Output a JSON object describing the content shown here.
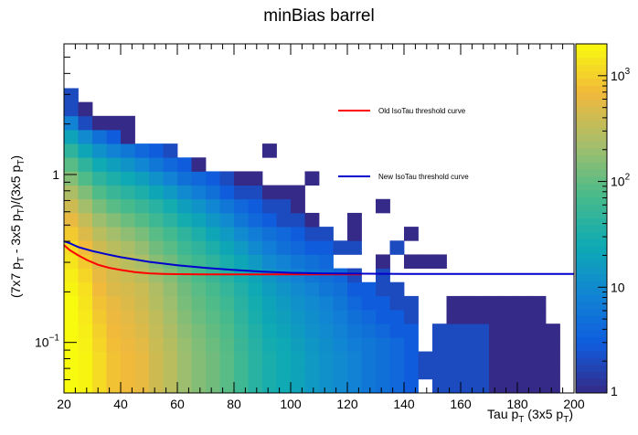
{
  "chart_data": {
    "type": "heatmap",
    "title": "minBias barrel",
    "xlabel": {
      "base": "Tau p",
      "sub": "T",
      "rest": " (3x5 p",
      "sub2": "T",
      "end": ")"
    },
    "ylabel": {
      "p1": "(7x7 p",
      "s1": "T",
      "p2": " - 3x5 p",
      "s2": "T",
      "p3": ")/(3x5 p",
      "s3": "T",
      "p4": ")"
    },
    "xlim": [
      20,
      200
    ],
    "ylim": [
      0.05,
      6
    ],
    "yscale": "log",
    "zscale": "log",
    "zlim": [
      1,
      2000
    ],
    "x_ticks": [
      20,
      40,
      60,
      80,
      100,
      120,
      140,
      160,
      180,
      200
    ],
    "x_tick_labels": [
      "20",
      "40",
      "60",
      "80",
      "100",
      "120",
      "140",
      "160",
      "180",
      "200"
    ],
    "y_tick_labels": [
      {
        "value": 0.1,
        "base": "10",
        "exp": "−1"
      },
      {
        "value": 1,
        "base": "1",
        "exp": ""
      }
    ],
    "z_tick_labels": [
      {
        "value": 1,
        "base": "1",
        "exp": ""
      },
      {
        "value": 10,
        "base": "10",
        "exp": ""
      },
      {
        "value": 100,
        "base": "10",
        "exp": "2"
      },
      {
        "value": 1000,
        "base": "10",
        "exp": "3"
      }
    ],
    "grid": false,
    "legend": {
      "position": "top-right",
      "entries": [
        {
          "label": "Old IsoTau threshold curve",
          "color": "#ff0000"
        },
        {
          "label": "New IsoTau threshold curve",
          "color": "#0000cc"
        }
      ]
    },
    "lines": [
      {
        "label": "Old IsoTau threshold curve",
        "color": "#ff0000",
        "x": [
          20,
          22,
          25,
          28,
          32,
          36,
          40,
          45,
          50,
          55,
          60,
          70,
          80,
          90,
          100,
          110,
          120,
          125
        ],
        "y": [
          0.38,
          0.355,
          0.33,
          0.31,
          0.29,
          0.278,
          0.27,
          0.262,
          0.258,
          0.256,
          0.255,
          0.254,
          0.254,
          0.254,
          0.254,
          0.254,
          0.254,
          0.254
        ]
      },
      {
        "label": "New IsoTau threshold curve",
        "color": "#0000cc",
        "x": [
          20,
          22,
          25,
          30,
          35,
          40,
          50,
          60,
          70,
          80,
          90,
          100,
          110,
          120,
          140,
          160,
          180,
          200
        ],
        "y": [
          0.4,
          0.39,
          0.37,
          0.35,
          0.335,
          0.322,
          0.302,
          0.288,
          0.278,
          0.27,
          0.264,
          0.26,
          0.258,
          0.257,
          0.256,
          0.256,
          0.256,
          0.256
        ]
      }
    ],
    "x_bins": [
      20,
      25,
      30,
      35,
      40,
      45,
      50,
      55,
      60,
      65,
      70,
      75,
      80,
      85,
      90,
      95,
      100,
      105,
      110,
      115,
      120,
      125,
      130,
      135,
      140,
      145,
      150,
      155,
      160,
      165,
      170,
      175,
      180,
      185,
      190,
      195,
      200
    ],
    "y_bins": [
      0.05,
      0.0605,
      0.0731,
      0.0884,
      0.1069,
      0.1293,
      0.1563,
      0.189,
      0.2286,
      0.2764,
      0.3342,
      0.4041,
      0.4887,
      0.591,
      0.7147,
      0.8642,
      1.0451,
      1.2638,
      1.5283,
      1.8481,
      2.2349,
      2.7026,
      3.2681,
      3.9521,
      4.7791,
      5.7792
    ],
    "z": [
      [
        2000,
        1800,
        1200,
        800,
        700,
        600,
        400,
        300,
        200,
        150,
        120,
        90,
        60,
        40,
        30,
        25,
        20,
        15,
        12,
        10,
        8,
        6,
        5,
        4,
        3,
        0,
        2,
        2,
        2,
        2,
        1,
        1,
        1,
        1,
        1,
        0
      ],
      [
        2000,
        1800,
        1200,
        800,
        700,
        600,
        400,
        300,
        200,
        150,
        120,
        90,
        60,
        40,
        30,
        25,
        20,
        15,
        12,
        10,
        8,
        6,
        5,
        4,
        3,
        2,
        2,
        2,
        2,
        2,
        1,
        1,
        1,
        1,
        1,
        0
      ],
      [
        2000,
        1800,
        1200,
        800,
        700,
        600,
        400,
        300,
        200,
        150,
        120,
        90,
        60,
        40,
        30,
        25,
        20,
        15,
        12,
        10,
        8,
        6,
        5,
        4,
        3,
        2,
        2,
        2,
        2,
        2,
        1,
        1,
        1,
        1,
        1,
        0
      ],
      [
        2000,
        1700,
        1100,
        750,
        650,
        550,
        380,
        280,
        190,
        140,
        110,
        85,
        55,
        38,
        28,
        23,
        18,
        14,
        11,
        9,
        7,
        6,
        5,
        4,
        3,
        0,
        2,
        2,
        2,
        2,
        1,
        1,
        1,
        1,
        1,
        0
      ],
      [
        2000,
        1600,
        1000,
        700,
        600,
        500,
        350,
        250,
        170,
        130,
        100,
        80,
        50,
        35,
        25,
        20,
        16,
        12,
        10,
        8,
        6,
        5,
        4,
        3,
        3,
        0,
        2,
        2,
        2,
        2,
        1,
        1,
        1,
        1,
        1,
        0
      ],
      [
        2000,
        1500,
        900,
        650,
        550,
        450,
        320,
        220,
        150,
        110,
        90,
        70,
        45,
        30,
        22,
        18,
        14,
        11,
        9,
        7,
        5,
        4,
        3,
        3,
        2,
        0,
        0,
        1,
        1,
        1,
        1,
        1,
        1,
        1,
        0,
        0
      ],
      [
        2000,
        1400,
        800,
        600,
        500,
        400,
        280,
        200,
        130,
        100,
        80,
        60,
        40,
        28,
        20,
        16,
        12,
        10,
        8,
        6,
        4,
        3,
        3,
        2,
        2,
        0,
        0,
        1,
        1,
        1,
        1,
        1,
        1,
        1,
        0,
        0
      ],
      [
        1800,
        1300,
        700,
        500,
        450,
        380,
        260,
        180,
        120,
        90,
        70,
        50,
        35,
        24,
        17,
        13,
        10,
        8,
        6,
        5,
        3,
        3,
        2,
        2,
        0,
        0,
        0,
        0,
        0,
        0,
        0,
        0,
        0,
        0,
        0,
        0
      ],
      [
        1600,
        1100,
        600,
        450,
        380,
        300,
        200,
        150,
        100,
        75,
        55,
        40,
        28,
        20,
        14,
        10,
        8,
        6,
        5,
        4,
        2,
        0,
        2,
        0,
        0,
        0,
        0,
        0,
        0,
        0,
        0,
        0,
        0,
        0,
        0,
        0
      ],
      [
        1400,
        900,
        500,
        380,
        300,
        240,
        160,
        120,
        80,
        60,
        45,
        30,
        22,
        15,
        10,
        8,
        6,
        5,
        4,
        0,
        0,
        0,
        1,
        0,
        1,
        1,
        1,
        0,
        0,
        0,
        0,
        0,
        0,
        0,
        0,
        0
      ],
      [
        1200,
        700,
        400,
        300,
        240,
        180,
        120,
        90,
        60,
        45,
        32,
        22,
        15,
        10,
        7,
        5,
        4,
        3,
        3,
        2,
        2,
        0,
        0,
        2,
        0,
        0,
        0,
        0,
        0,
        0,
        0,
        0,
        0,
        0,
        0,
        0
      ],
      [
        900,
        500,
        300,
        220,
        170,
        130,
        90,
        65,
        45,
        32,
        22,
        15,
        10,
        7,
        5,
        4,
        3,
        2,
        2,
        0,
        1,
        0,
        0,
        0,
        1,
        0,
        0,
        0,
        0,
        0,
        0,
        0,
        0,
        0,
        0,
        0
      ],
      [
        600,
        350,
        200,
        150,
        110,
        85,
        60,
        42,
        28,
        20,
        14,
        10,
        6,
        4,
        3,
        2,
        2,
        1,
        0,
        0,
        1,
        0,
        0,
        0,
        0,
        0,
        0,
        0,
        0,
        0,
        0,
        0,
        0,
        0,
        0,
        0
      ],
      [
        400,
        220,
        130,
        90,
        70,
        55,
        40,
        28,
        18,
        13,
        9,
        6,
        4,
        3,
        2,
        2,
        1,
        0,
        0,
        0,
        0,
        0,
        1,
        0,
        0,
        0,
        0,
        0,
        0,
        0,
        0,
        0,
        0,
        0,
        0,
        0
      ],
      [
        250,
        140,
        80,
        55,
        42,
        32,
        22,
        15,
        10,
        7,
        5,
        3,
        2,
        2,
        1,
        1,
        1,
        0,
        0,
        0,
        0,
        0,
        0,
        0,
        0,
        0,
        0,
        0,
        0,
        0,
        0,
        0,
        0,
        0,
        0,
        0
      ],
      [
        150,
        80,
        45,
        32,
        24,
        18,
        12,
        8,
        5,
        4,
        3,
        2,
        1,
        1,
        0,
        0,
        0,
        1,
        0,
        0,
        0,
        0,
        0,
        0,
        0,
        0,
        0,
        0,
        0,
        0,
        0,
        0,
        0,
        0,
        0,
        0
      ],
      [
        90,
        45,
        25,
        18,
        13,
        9,
        6,
        4,
        3,
        1,
        0,
        0,
        0,
        0,
        0,
        0,
        0,
        0,
        0,
        0,
        0,
        0,
        0,
        0,
        0,
        0,
        0,
        0,
        0,
        0,
        0,
        0,
        0,
        0,
        0,
        0
      ],
      [
        45,
        22,
        12,
        8,
        6,
        4,
        3,
        2,
        0,
        0,
        0,
        0,
        0,
        0,
        1,
        0,
        0,
        0,
        0,
        0,
        0,
        0,
        0,
        0,
        0,
        0,
        0,
        0,
        0,
        0,
        0,
        0,
        0,
        0,
        0,
        0
      ],
      [
        20,
        10,
        5,
        3,
        1,
        0,
        0,
        0,
        0,
        0,
        0,
        0,
        0,
        0,
        0,
        0,
        0,
        0,
        0,
        0,
        0,
        0,
        0,
        0,
        0,
        0,
        0,
        0,
        0,
        0,
        0,
        0,
        0,
        0,
        0,
        0
      ],
      [
        8,
        2,
        1,
        1,
        1,
        0,
        0,
        0,
        0,
        0,
        0,
        0,
        0,
        0,
        0,
        0,
        0,
        0,
        0,
        0,
        0,
        0,
        0,
        0,
        0,
        0,
        0,
        0,
        0,
        0,
        0,
        0,
        0,
        0,
        0,
        0
      ],
      [
        2,
        1,
        0,
        0,
        0,
        0,
        0,
        0,
        0,
        0,
        0,
        0,
        0,
        0,
        0,
        0,
        0,
        0,
        0,
        0,
        0,
        0,
        0,
        0,
        0,
        0,
        0,
        0,
        0,
        0,
        0,
        0,
        0,
        0,
        0,
        0
      ],
      [
        2,
        0,
        0,
        0,
        0,
        0,
        0,
        0,
        0,
        0,
        0,
        0,
        0,
        0,
        0,
        0,
        0,
        0,
        0,
        0,
        0,
        0,
        0,
        0,
        0,
        0,
        0,
        0,
        0,
        0,
        0,
        0,
        0,
        0,
        0,
        0
      ],
      [
        0,
        0,
        0,
        0,
        0,
        0,
        0,
        0,
        0,
        0,
        0,
        0,
        0,
        0,
        0,
        0,
        0,
        0,
        0,
        0,
        0,
        0,
        0,
        0,
        0,
        0,
        0,
        0,
        0,
        0,
        0,
        0,
        0,
        0,
        0,
        0
      ],
      [
        0,
        0,
        0,
        0,
        0,
        0,
        0,
        0,
        0,
        0,
        0,
        0,
        0,
        0,
        0,
        0,
        0,
        0,
        0,
        0,
        0,
        0,
        0,
        0,
        0,
        0,
        0,
        0,
        0,
        0,
        0,
        0,
        0,
        0,
        0,
        0
      ],
      [
        0,
        0,
        0,
        0,
        0,
        0,
        0,
        0,
        0,
        0,
        0,
        0,
        0,
        0,
        0,
        0,
        0,
        0,
        0,
        0,
        0,
        0,
        0,
        0,
        0,
        0,
        0,
        0,
        0,
        0,
        0,
        0,
        0,
        0,
        0,
        0
      ]
    ]
  }
}
